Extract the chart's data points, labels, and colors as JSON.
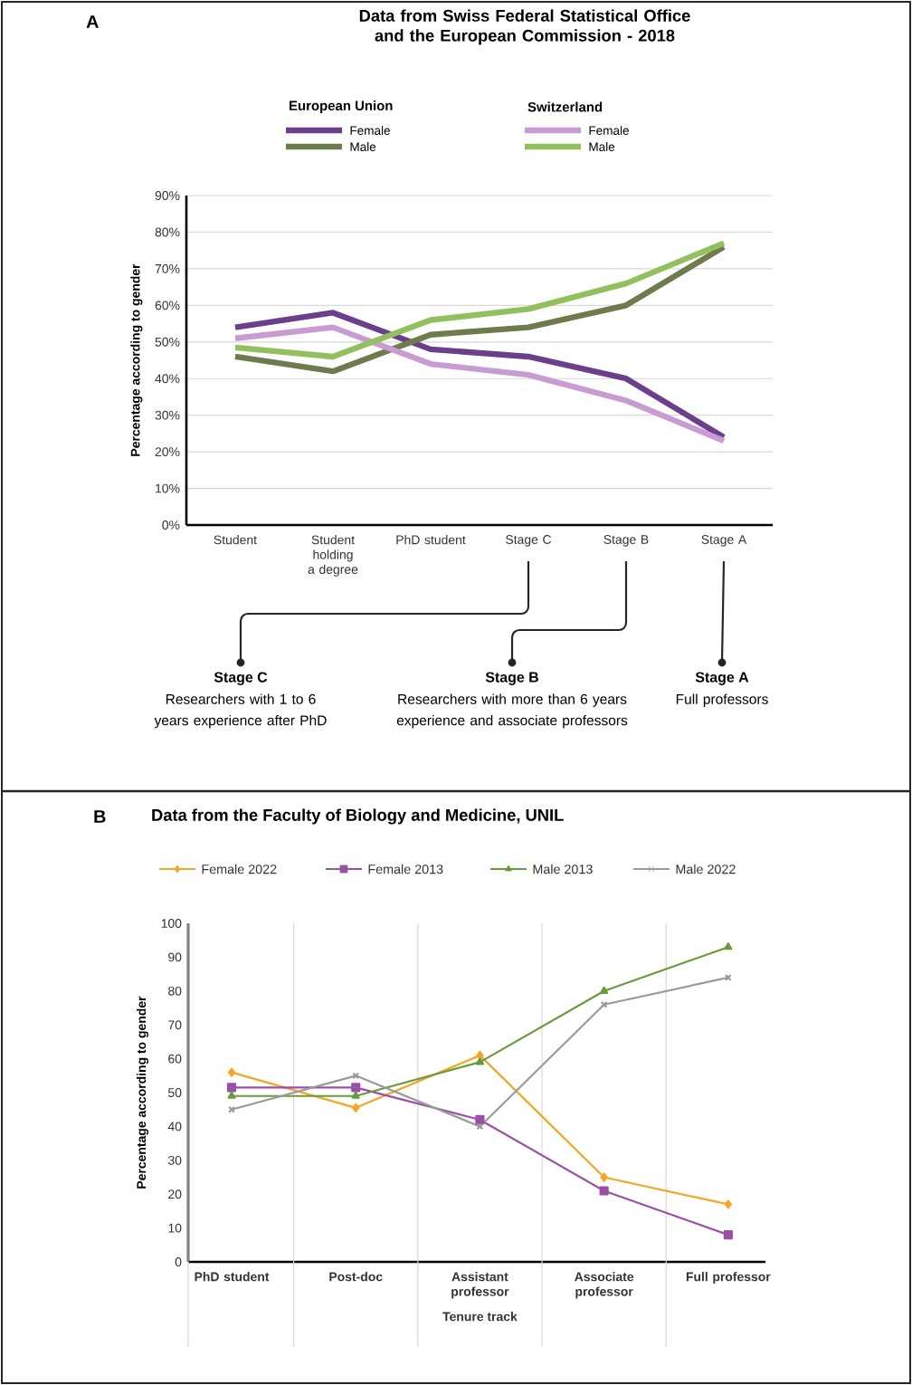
{
  "chart_data": [
    {
      "type": "line",
      "title": "Data from Swiss Federal Statistical Office and the European Commission - 2018",
      "ylabel": "Percentage according to gender",
      "categories": [
        "Student",
        "Student holding a degree",
        "PhD student",
        "Stage C",
        "Stage B",
        "Stage A"
      ],
      "series": [
        {
          "name": "Female",
          "color": "#6b3f8c",
          "values": [
            54,
            58,
            48,
            46,
            40,
            24
          ]
        },
        {
          "name": "Male",
          "color": "#6e7b4c",
          "values": [
            46,
            42,
            52,
            54,
            60,
            76
          ]
        },
        {
          "name": "Female",
          "color": "#c99bd3",
          "values": [
            51,
            54,
            44,
            41,
            34,
            23
          ]
        },
        {
          "name": "Male",
          "color": "#92c05c",
          "values": [
            48.5,
            46,
            56,
            59,
            66,
            77
          ]
        }
      ],
      "ylim": [
        0,
        90
      ],
      "yticks": [
        {
          "value": 0,
          "label": "0%"
        },
        {
          "value": 10,
          "label": "10%"
        },
        {
          "value": 20,
          "label": "20%"
        },
        {
          "value": 30,
          "label": "30%"
        },
        {
          "value": 40,
          "label": "40%"
        },
        {
          "value": 50,
          "label": "50%"
        },
        {
          "value": 60,
          "label": "60%"
        },
        {
          "value": 70,
          "label": "70%"
        },
        {
          "value": 80,
          "label": "80%"
        },
        {
          "value": 90,
          "label": "90%"
        }
      ],
      "grid": "y",
      "legend": "top",
      "marker": "none",
      "line_style": "solid",
      "annotations": [
        "A",
        "European Union",
        "Switzerland",
        "Stage C",
        "Researchers with 1 to 6 years experience after PhD",
        "Stage B",
        "Researchers with more than 6 years experience and associate professors",
        "Stage A",
        "Full professors"
      ]
    },
    {
      "type": "line",
      "title": "Data from the Faculty of Biology and Medicine, UNIL",
      "ylabel": "Percentage according to gender",
      "categories": [
        "PhD student",
        "Post-doc",
        "Assistant professor",
        "Associate professor",
        "Full professor"
      ],
      "series": [
        {
          "name": "Female 2022",
          "color": "#f5a623",
          "marker": "diamond",
          "values": [
            56,
            45.5,
            61,
            25,
            17
          ]
        },
        {
          "name": "Female 2013",
          "color": "#9b4fa8",
          "marker": "square",
          "values": [
            51.5,
            51.5,
            42,
            21,
            8
          ]
        },
        {
          "name": "Male 2013",
          "color": "#6a9a3c",
          "marker": "triangle",
          "values": [
            49,
            49,
            59,
            80,
            93
          ]
        },
        {
          "name": "Male 2022",
          "color": "#9a9a9a",
          "marker": "cross",
          "values": [
            45,
            55,
            40,
            76,
            84
          ]
        }
      ],
      "ylim": [
        0,
        100
      ],
      "yticks": [
        0,
        10,
        20,
        30,
        40,
        50,
        60,
        70,
        80,
        90,
        100
      ],
      "grid": "x",
      "legend": "top",
      "line_style": "solid",
      "annotations": [
        "B",
        "Tenure track"
      ]
    }
  ]
}
